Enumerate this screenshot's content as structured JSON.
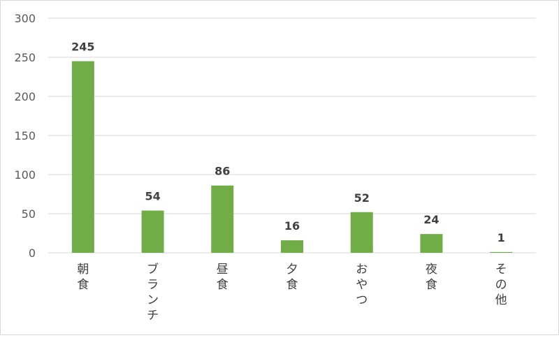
{
  "chart_data": {
    "type": "bar",
    "categories": [
      "朝食",
      "ブランチ",
      "昼食",
      "夕食",
      "おやつ",
      "夜食",
      "その他"
    ],
    "values": [
      245,
      54,
      86,
      16,
      52,
      24,
      1
    ],
    "data_labels": [
      "245",
      "54",
      "86",
      "16",
      "52",
      "24",
      "1"
    ],
    "yticks": [
      "0",
      "50",
      "100",
      "150",
      "200",
      "250",
      "300"
    ],
    "ylim": [
      0,
      300
    ],
    "title": "",
    "xlabel": "",
    "ylabel": "",
    "grid": true,
    "legend": "none",
    "bar_color": "#70ad47",
    "grid_color": "#d9d9d9"
  }
}
